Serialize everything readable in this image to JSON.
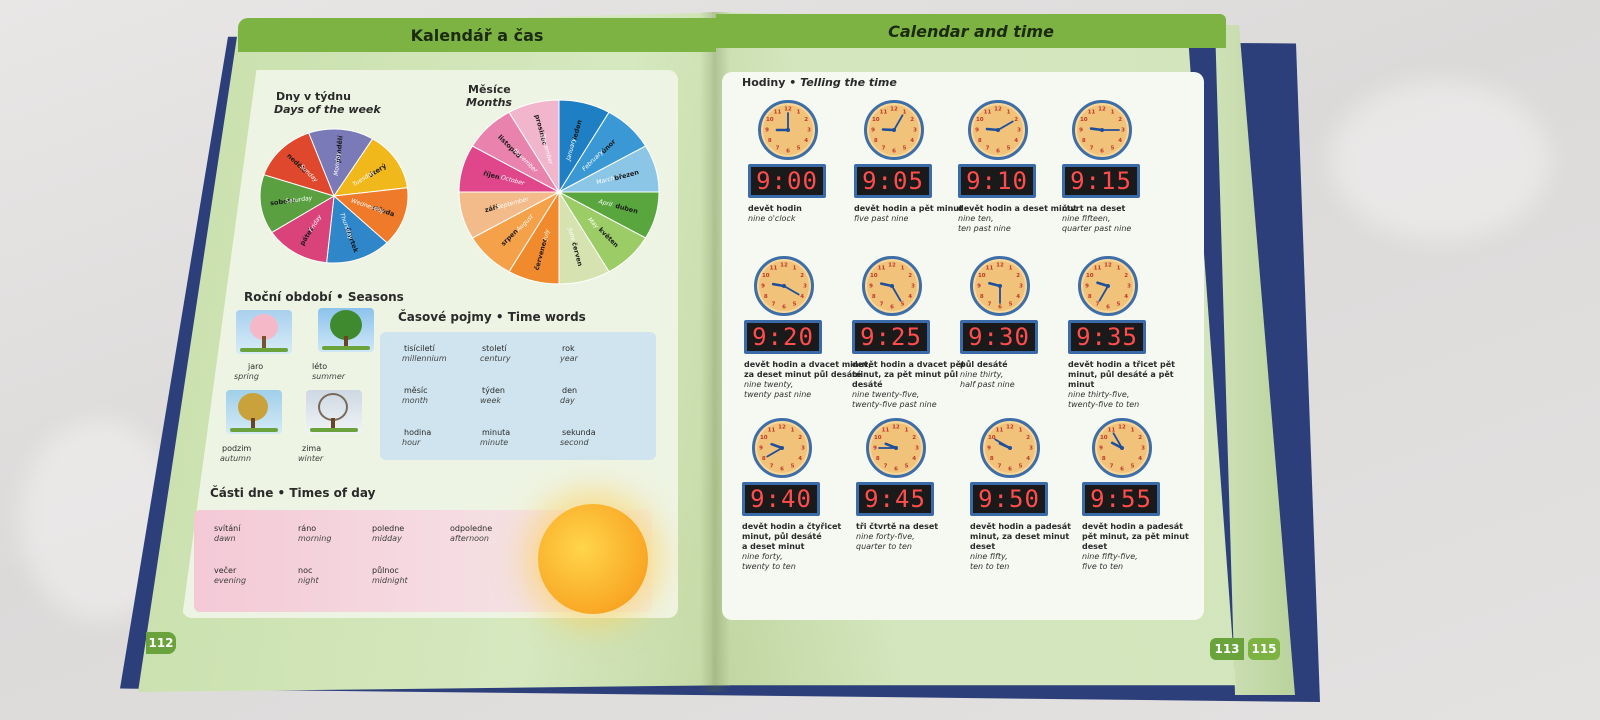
{
  "left_page": {
    "header": "Kalendář a čas",
    "days_title_cz": "Dny v týdnu",
    "days_title_en": "Days of the week",
    "days": [
      {
        "cz": "pondělí",
        "en": "Monday",
        "color": "#7a7ab8"
      },
      {
        "cz": "úterý",
        "en": "Tuesday",
        "color": "#f1b81c"
      },
      {
        "cz": "středa",
        "en": "Wednesday",
        "color": "#ee7a2a"
      },
      {
        "cz": "čtvrtek",
        "en": "Thursday",
        "color": "#2f86c8"
      },
      {
        "cz": "pátek",
        "en": "Friday",
        "color": "#d9437a"
      },
      {
        "cz": "sobota",
        "en": "Saturday",
        "color": "#5aa041"
      },
      {
        "cz": "neděle",
        "en": "Sunday",
        "color": "#e0482e"
      }
    ],
    "months_title_cz": "Měsíce",
    "months_title_en": "Months",
    "months": [
      {
        "cz": "leden",
        "en": "January",
        "color": "#1f7fc4"
      },
      {
        "cz": "únor",
        "en": "February",
        "color": "#3a98d4"
      },
      {
        "cz": "březen",
        "en": "March",
        "color": "#8cc6e6"
      },
      {
        "cz": "duben",
        "en": "April",
        "color": "#5aa63e"
      },
      {
        "cz": "květen",
        "en": "May",
        "color": "#9ccc65"
      },
      {
        "cz": "červen",
        "en": "June",
        "color": "#d6e3b0"
      },
      {
        "cz": "červenec",
        "en": "July",
        "color": "#f08a2c"
      },
      {
        "cz": "srpen",
        "en": "August",
        "color": "#f5a14a"
      },
      {
        "cz": "září",
        "en": "September",
        "color": "#f3bb8a"
      },
      {
        "cz": "říjen",
        "en": "October",
        "color": "#e0478a"
      },
      {
        "cz": "listopad",
        "en": "November",
        "color": "#e983ad"
      },
      {
        "cz": "prosinec",
        "en": "December",
        "color": "#f2b6cc"
      }
    ],
    "seasons_title": "Roční období • Seasons",
    "seasons": [
      {
        "cz": "jaro",
        "en": "spring"
      },
      {
        "cz": "léto",
        "en": "summer"
      },
      {
        "cz": "podzim",
        "en": "autumn"
      },
      {
        "cz": "zima",
        "en": "winter"
      }
    ],
    "time_words_title": "Časové pojmy • Time words",
    "time_words": [
      {
        "cz": "tisíciletí",
        "en": "millennium"
      },
      {
        "cz": "století",
        "en": "century"
      },
      {
        "cz": "rok",
        "en": "year"
      },
      {
        "cz": "měsíc",
        "en": "month"
      },
      {
        "cz": "týden",
        "en": "week"
      },
      {
        "cz": "den",
        "en": "day"
      },
      {
        "cz": "hodina",
        "en": "hour"
      },
      {
        "cz": "minuta",
        "en": "minute"
      },
      {
        "cz": "sekunda",
        "en": "second"
      }
    ],
    "times_of_day_title": "Části dne • Times of day",
    "times_of_day": [
      {
        "cz": "svítání",
        "en": "dawn"
      },
      {
        "cz": "ráno",
        "en": "morning"
      },
      {
        "cz": "poledne",
        "en": "midday"
      },
      {
        "cz": "odpoledne",
        "en": "afternoon"
      },
      {
        "cz": "večer",
        "en": "evening"
      },
      {
        "cz": "noc",
        "en": "night"
      },
      {
        "cz": "půlnoc",
        "en": "midnight"
      }
    ],
    "page_number": "112"
  },
  "right_page": {
    "header": "Calendar and time",
    "section_title_cz": "Hodiny",
    "section_title_en": "Telling the time",
    "clocks": [
      {
        "time": "9:00",
        "hour": 9,
        "minute": 0,
        "cz": "devět hodin",
        "en": "nine o'clock"
      },
      {
        "time": "9:05",
        "hour": 9,
        "minute": 5,
        "cz": "devět hodin a pět minut",
        "en": "five past nine"
      },
      {
        "time": "9:10",
        "hour": 9,
        "minute": 10,
        "cz": "devět hodin a deset minut",
        "en": "nine ten,\nten past nine"
      },
      {
        "time": "9:15",
        "hour": 9,
        "minute": 15,
        "cz": "čtvrt na deset",
        "en": "nine fifteen,\nquarter past nine"
      },
      {
        "time": "9:20",
        "hour": 9,
        "minute": 20,
        "cz": "devět hodin a dvacet minut,\nza deset minut půl desáté",
        "en": "nine twenty,\ntwenty past nine"
      },
      {
        "time": "9:25",
        "hour": 9,
        "minute": 25,
        "cz": "devět hodin a dvacet pět\nminut, za pět minut půl\ndesáté",
        "en": "nine twenty-five,\ntwenty-five past nine"
      },
      {
        "time": "9:30",
        "hour": 9,
        "minute": 30,
        "cz": "půl desáté",
        "en": "nine thirty,\nhalf past nine"
      },
      {
        "time": "9:35",
        "hour": 9,
        "minute": 35,
        "cz": "devět hodin a třicet pět\nminut, půl desáté a pět\nminut",
        "en": "nine thirty-five,\ntwenty-five to ten"
      },
      {
        "time": "9:40",
        "hour": 9,
        "minute": 40,
        "cz": "devět hodin a čtyřicet\nminut, půl desáté\na deset minut",
        "en": "nine forty,\ntwenty to ten"
      },
      {
        "time": "9:45",
        "hour": 9,
        "minute": 45,
        "cz": "tři čtvrtě na deset",
        "en": "nine forty-five,\nquarter to ten"
      },
      {
        "time": "9:50",
        "hour": 9,
        "minute": 50,
        "cz": "devět hodin a padesát\nminut, za deset minut\ndeset",
        "en": "nine fifty,\nten to ten"
      },
      {
        "time": "9:55",
        "hour": 9,
        "minute": 55,
        "cz": "devět hodin a padesát\npět minut, za pět minut\ndeset",
        "en": "nine fifty-five,\nfive to ten"
      }
    ],
    "page_number": "113",
    "next_page_number": "115"
  }
}
